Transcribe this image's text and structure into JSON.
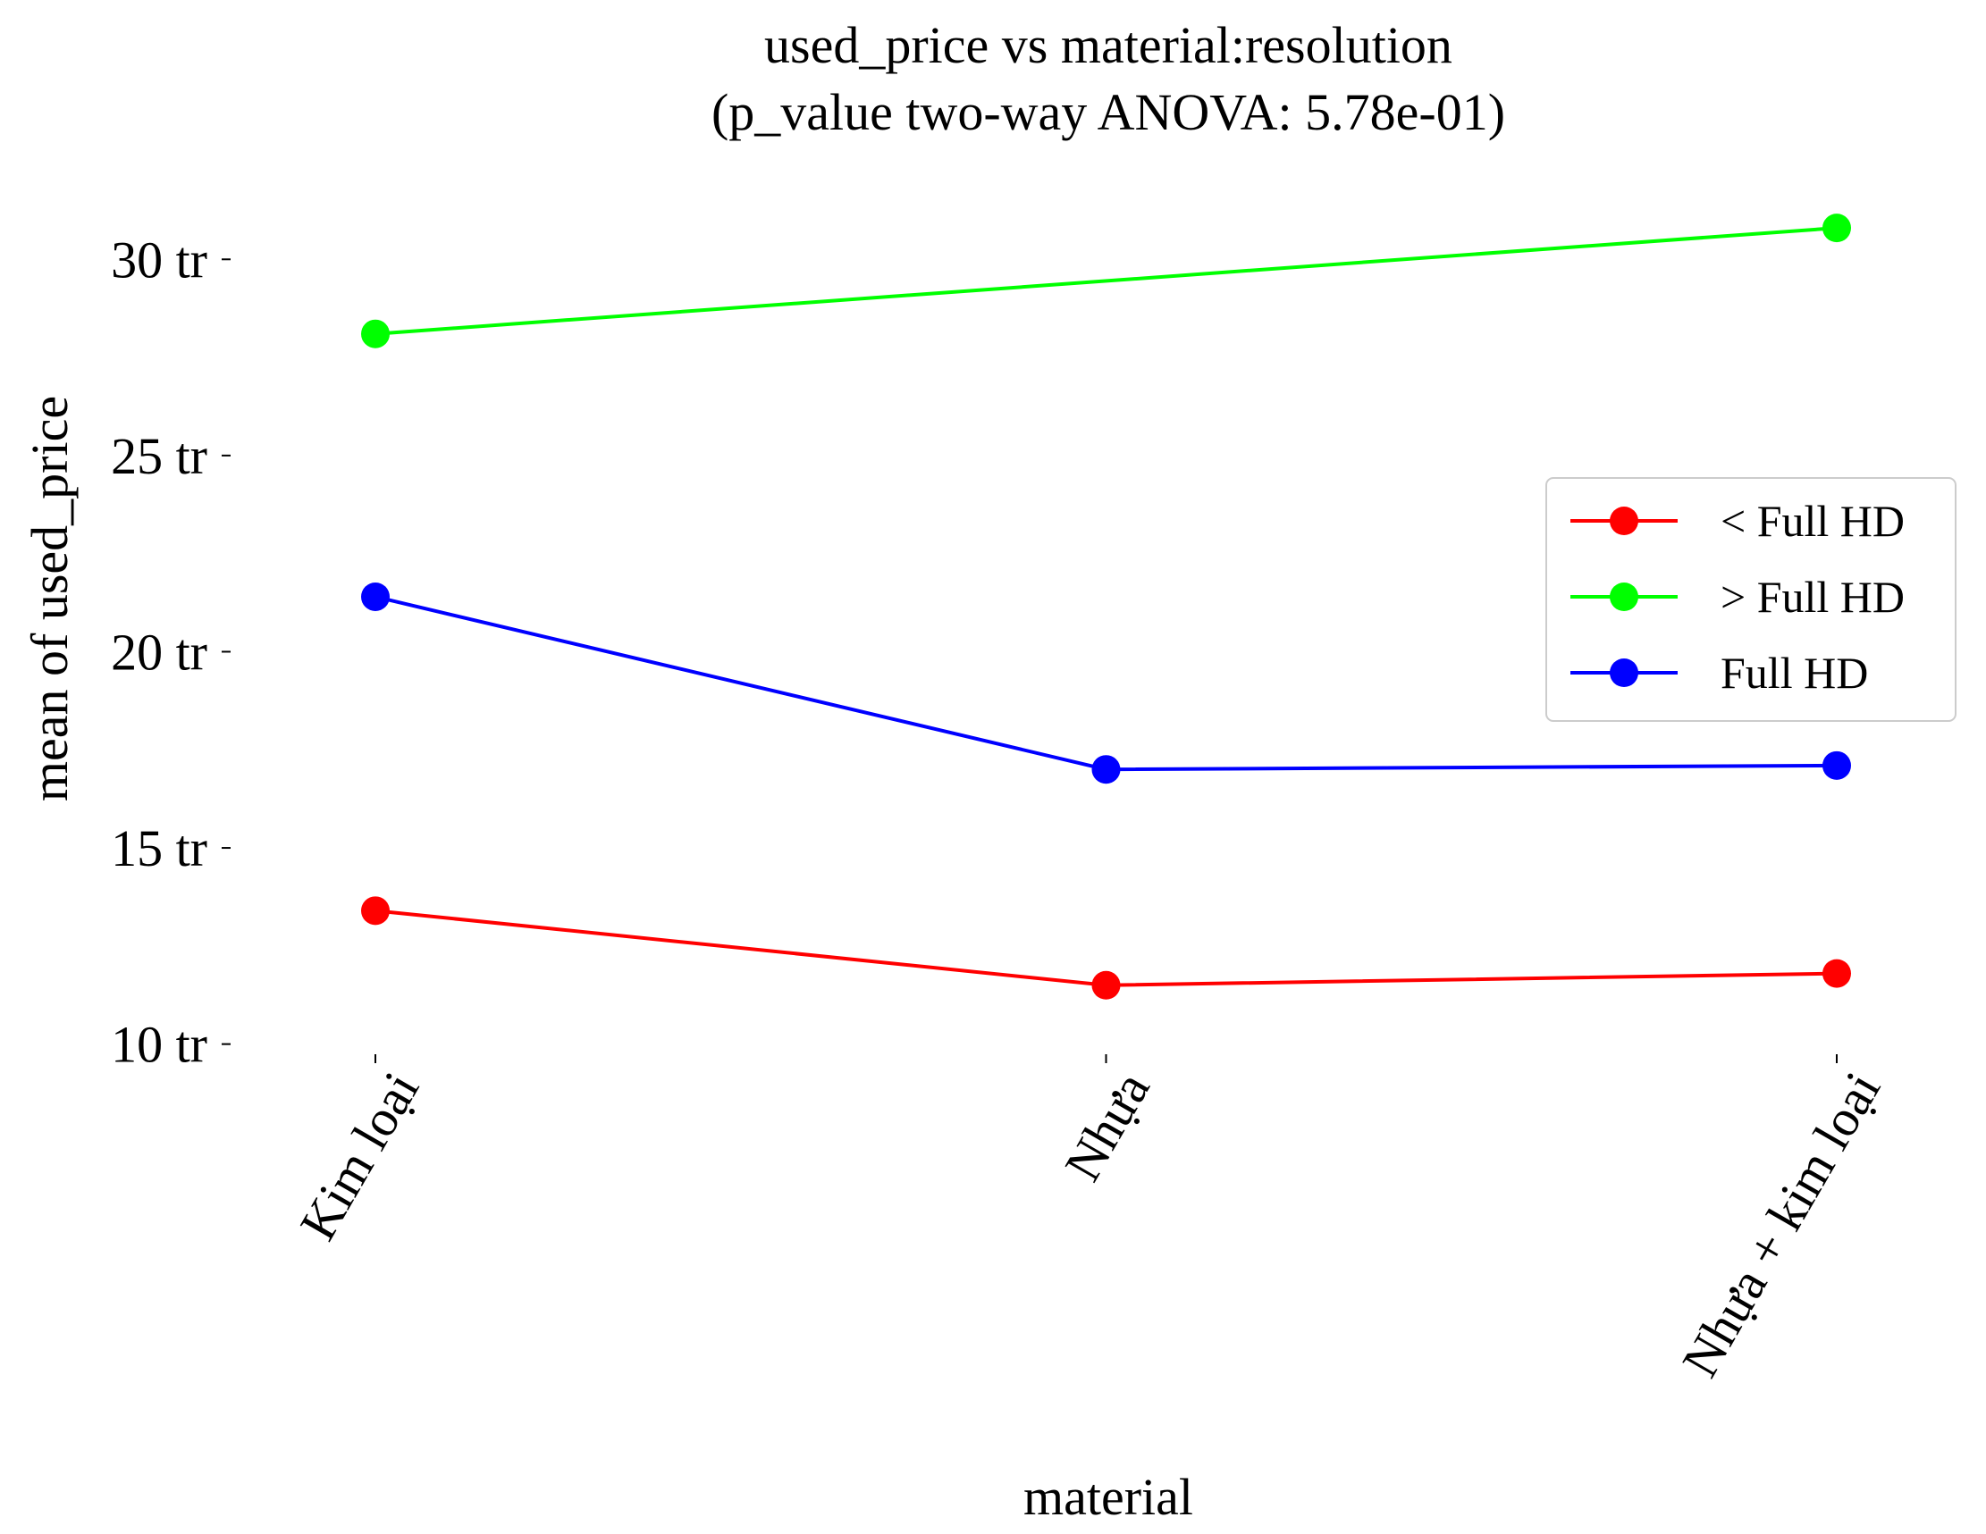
{
  "chart_data": {
    "type": "line",
    "title": "used_price vs material:resolution",
    "subtitle": "(p_value two-way ANOVA: 5.78e-01)",
    "xlabel": "material",
    "ylabel": "mean of used_price",
    "categories": [
      "Kim loại",
      "Nhựa",
      "Nhựa + kim loại"
    ],
    "y_unit_suffix": " tr",
    "yticks": [
      10,
      15,
      20,
      25,
      30
    ],
    "ylim": [
      9.4,
      31.6
    ],
    "grid": false,
    "legend_position": "center-right",
    "series": [
      {
        "name": "< Full HD",
        "color": "#ff0000",
        "values": [
          13.4,
          11.5,
          11.8
        ]
      },
      {
        "name": "> Full HD",
        "color": "#00ff00",
        "values": [
          28.1,
          null,
          30.8
        ]
      },
      {
        "name": "Full HD",
        "color": "#0000ff",
        "values": [
          21.4,
          17.0,
          17.1
        ]
      }
    ]
  }
}
